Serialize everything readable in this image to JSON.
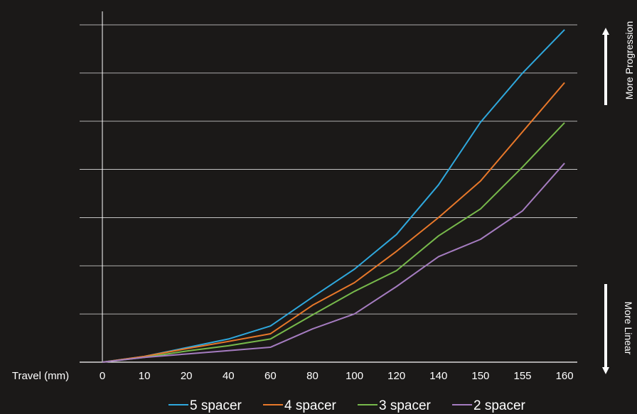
{
  "chart_data": {
    "type": "line",
    "xlabel": "Travel (mm)",
    "ylabel": "",
    "categories": [
      "0",
      "10",
      "20",
      "40",
      "60",
      "80",
      "100",
      "120",
      "140",
      "150",
      "155",
      "160"
    ],
    "ylim": [
      0,
      7
    ],
    "grid": true,
    "legend_position": "bottom",
    "series": [
      {
        "name": "5 spacer",
        "color": "#2fa8dd",
        "values": [
          0,
          0.12,
          0.3,
          0.48,
          0.75,
          1.35,
          1.93,
          2.65,
          3.68,
          4.98,
          6.0,
          6.9
        ]
      },
      {
        "name": "4 spacer",
        "color": "#e8782a",
        "values": [
          0,
          0.12,
          0.28,
          0.43,
          0.59,
          1.18,
          1.65,
          2.3,
          3.0,
          3.76,
          4.78,
          5.8
        ]
      },
      {
        "name": "3 spacer",
        "color": "#77b94b",
        "values": [
          0,
          0.1,
          0.23,
          0.34,
          0.48,
          0.98,
          1.47,
          1.9,
          2.62,
          3.18,
          4.05,
          4.97
        ]
      },
      {
        "name": "2 spacer",
        "color": "#a57cc0",
        "values": [
          0,
          0.1,
          0.17,
          0.24,
          0.31,
          0.69,
          1.0,
          1.57,
          2.19,
          2.55,
          3.14,
          4.13
        ]
      }
    ],
    "annotations": {
      "top": "More Progression",
      "bottom": "More Linear"
    }
  }
}
